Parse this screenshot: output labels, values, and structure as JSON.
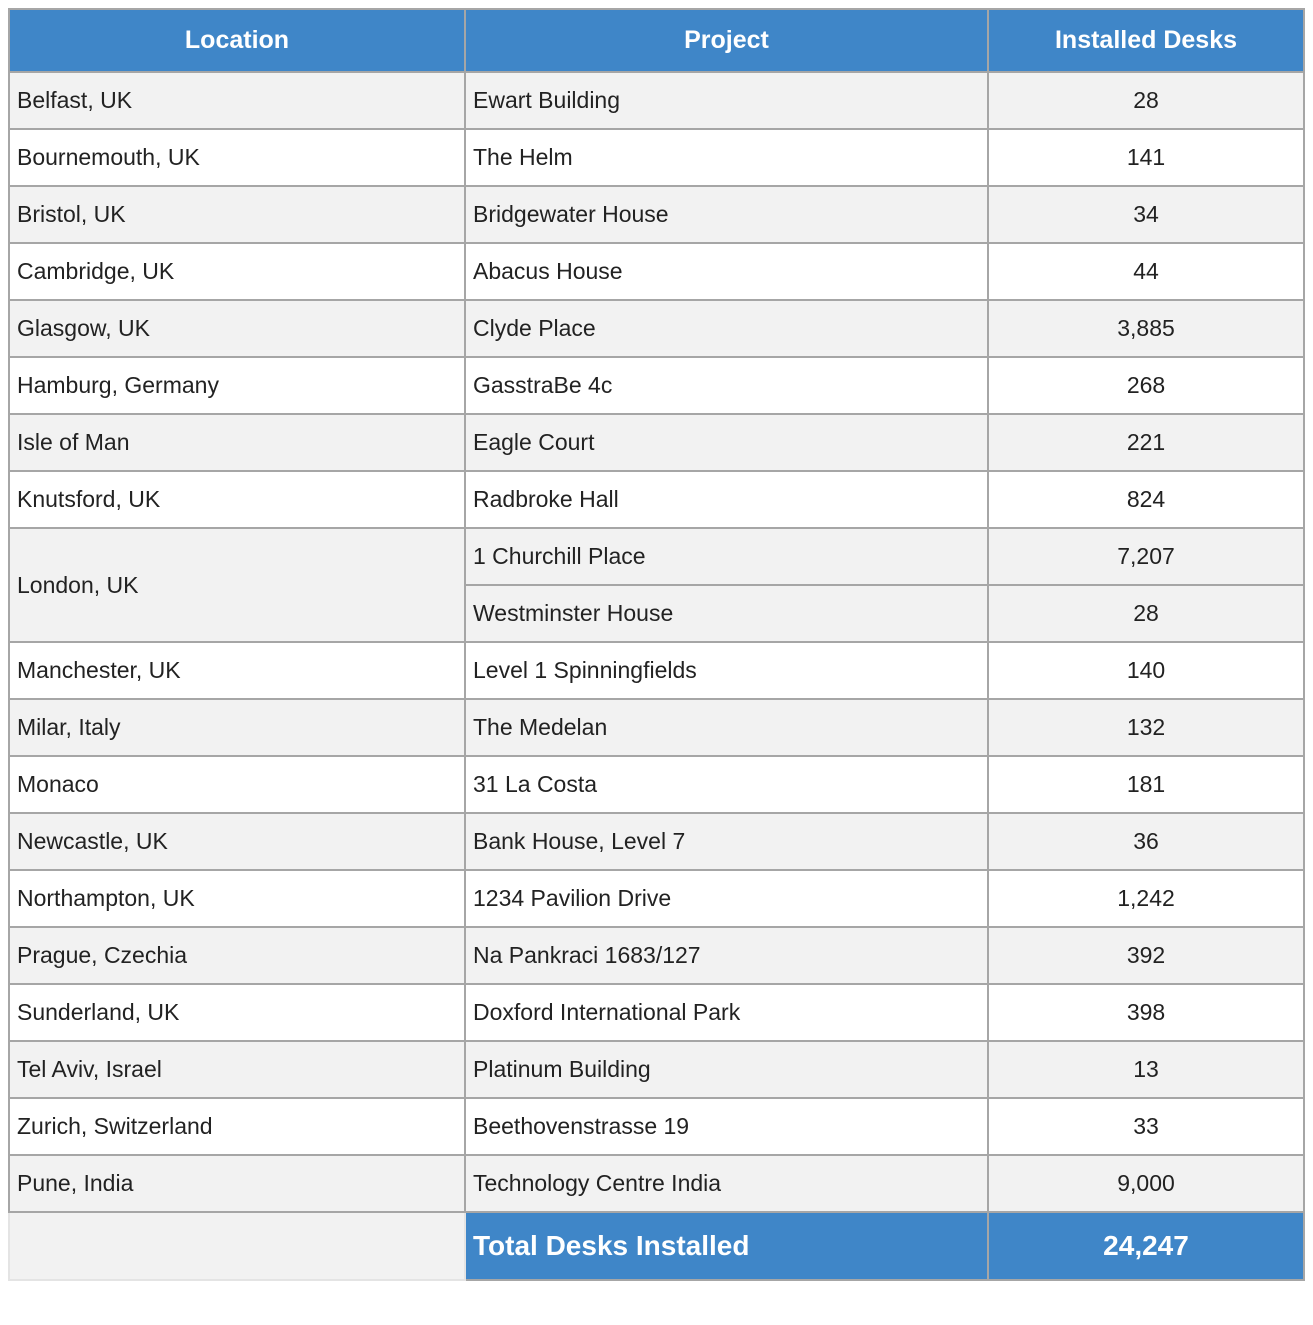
{
  "table": {
    "headers": [
      "Location",
      "Project",
      "Installed Desks"
    ],
    "rows": [
      {
        "location": "Belfast, UK",
        "projects": [
          [
            "Ewart Building",
            "28"
          ]
        ]
      },
      {
        "location": "Bournemouth, UK",
        "projects": [
          [
            "The Helm",
            "141"
          ]
        ]
      },
      {
        "location": "Bristol, UK",
        "projects": [
          [
            "Bridgewater House",
            "34"
          ]
        ]
      },
      {
        "location": "Cambridge, UK",
        "projects": [
          [
            "Abacus House",
            "44"
          ]
        ]
      },
      {
        "location": "Glasgow, UK",
        "projects": [
          [
            "Clyde Place",
            "3,885"
          ]
        ]
      },
      {
        "location": "Hamburg, Germany",
        "projects": [
          [
            "GasstraBe 4c",
            "268"
          ]
        ]
      },
      {
        "location": "Isle of Man",
        "projects": [
          [
            "Eagle Court",
            "221"
          ]
        ]
      },
      {
        "location": "Knutsford, UK",
        "projects": [
          [
            "Radbroke Hall",
            "824"
          ]
        ]
      },
      {
        "location": "London, UK",
        "projects": [
          [
            "1 Churchill Place",
            "7,207"
          ],
          [
            "Westminster House",
            "28"
          ]
        ]
      },
      {
        "location": "Manchester, UK",
        "projects": [
          [
            "Level 1 Spinningfields",
            "140"
          ]
        ]
      },
      {
        "location": "Milar, Italy",
        "projects": [
          [
            "The Medelan",
            "132"
          ]
        ]
      },
      {
        "location": "Monaco",
        "projects": [
          [
            "31 La Costa",
            "181"
          ]
        ]
      },
      {
        "location": "Newcastle, UK",
        "projects": [
          [
            "Bank House, Level 7",
            "36"
          ]
        ]
      },
      {
        "location": "Northampton, UK",
        "projects": [
          [
            "1234 Pavilion Drive",
            "1,242"
          ]
        ]
      },
      {
        "location": "Prague, Czechia",
        "projects": [
          [
            "Na Pankraci 1683/127",
            "392"
          ]
        ]
      },
      {
        "location": "Sunderland, UK",
        "projects": [
          [
            "Doxford International Park",
            "398"
          ]
        ]
      },
      {
        "location": "Tel Aviv, Israel",
        "projects": [
          [
            "Platinum Building",
            "13"
          ]
        ]
      },
      {
        "location": "Zurich, Switzerland",
        "projects": [
          [
            "Beethovenstrasse 19",
            "33"
          ]
        ]
      },
      {
        "location": "Pune, India",
        "projects": [
          [
            "Technology Centre India",
            "9,000"
          ]
        ]
      }
    ],
    "total": {
      "label": "Total Desks Installed",
      "value": "24,247"
    }
  }
}
